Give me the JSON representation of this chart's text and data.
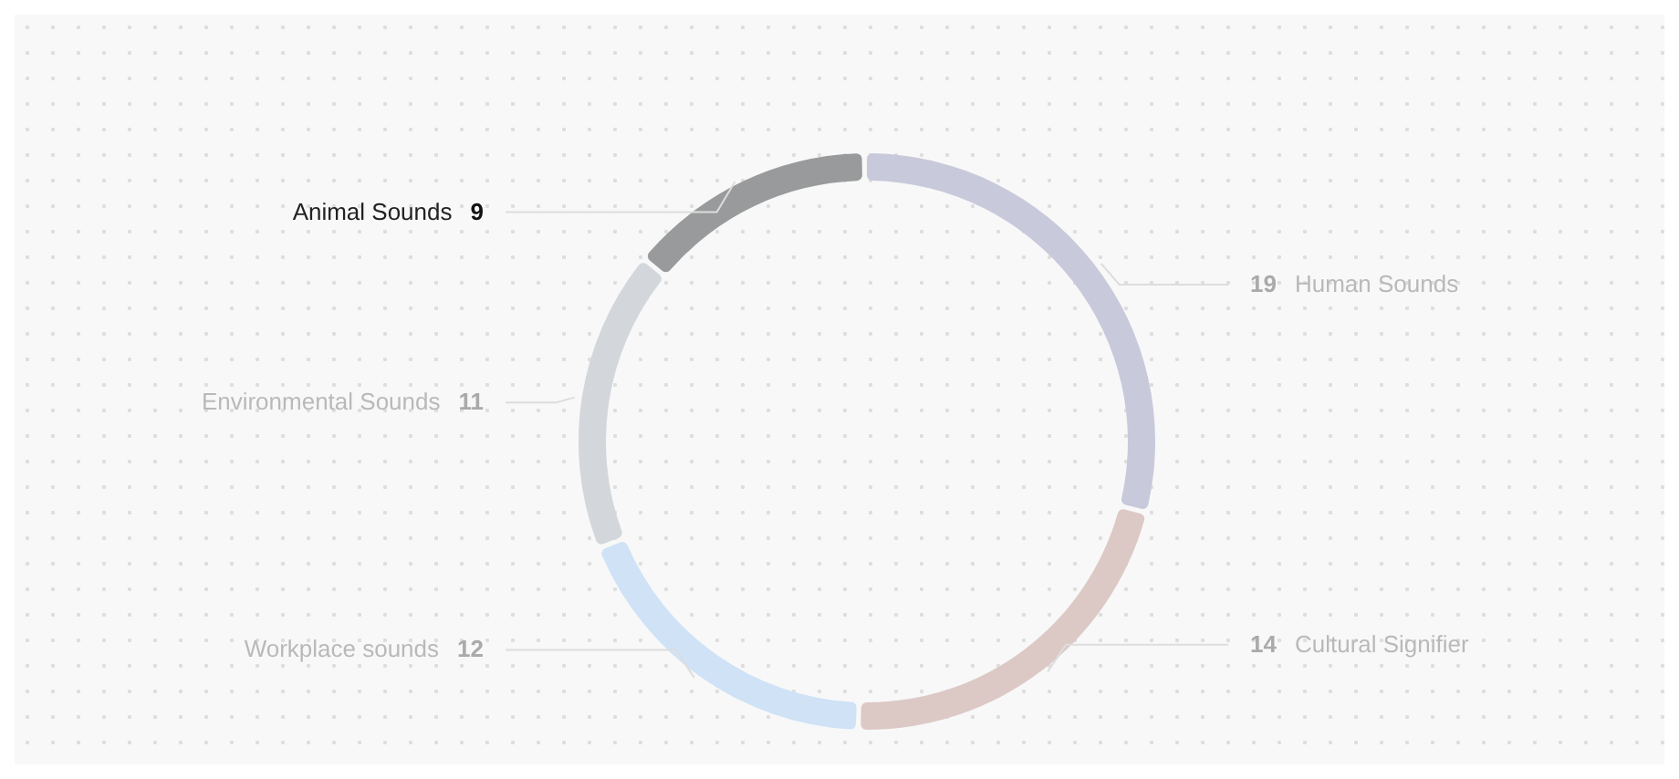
{
  "chart_data": {
    "type": "donut",
    "categories": [
      "Human Sounds",
      "Cultural Signifier",
      "Workplace sounds",
      "Environmental Sounds",
      "Animal Sounds"
    ],
    "values": [
      19,
      14,
      12,
      11,
      9
    ],
    "colors": [
      "#c8c9db",
      "#dcc9c6",
      "#cfe2f6",
      "#d3d7db",
      "#999a9b"
    ],
    "data_labels": true
  }
}
